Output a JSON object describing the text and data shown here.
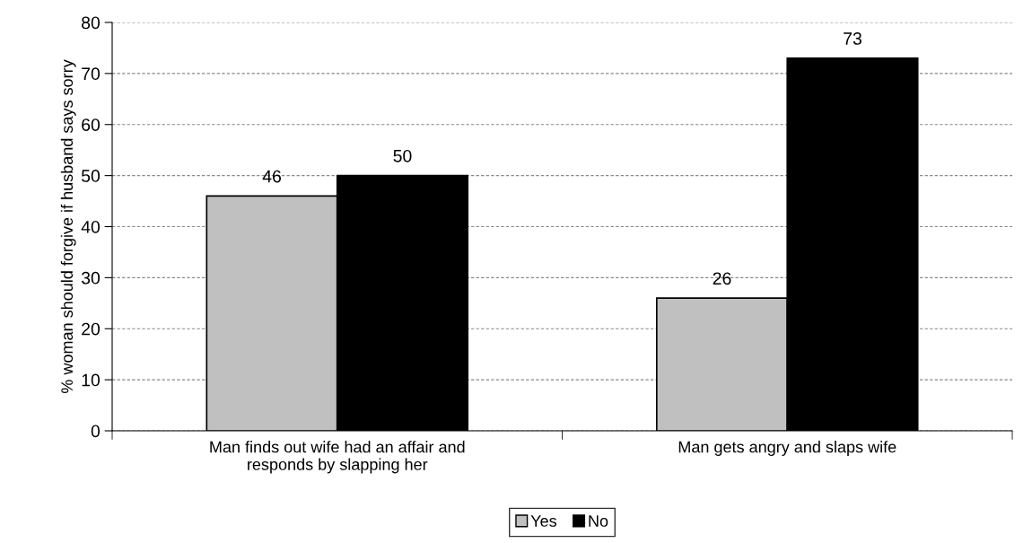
{
  "chart_data": {
    "type": "bar",
    "ylabel": "% woman should forgive if husband says sorry",
    "categories": [
      "Man finds out wife had an affair and\nresponds by slapping her",
      "Man gets angry and slaps wife"
    ],
    "series": [
      {
        "name": "Yes",
        "color": "#c0c0c0",
        "values": [
          46,
          26
        ]
      },
      {
        "name": "No",
        "color": "#000000",
        "values": [
          50,
          73
        ]
      }
    ],
    "ylim": [
      0,
      80
    ],
    "yticks": [
      0,
      10,
      20,
      30,
      40,
      50,
      60,
      70,
      80
    ],
    "grid": "y",
    "legend": "bottom",
    "data_labels": true
  }
}
